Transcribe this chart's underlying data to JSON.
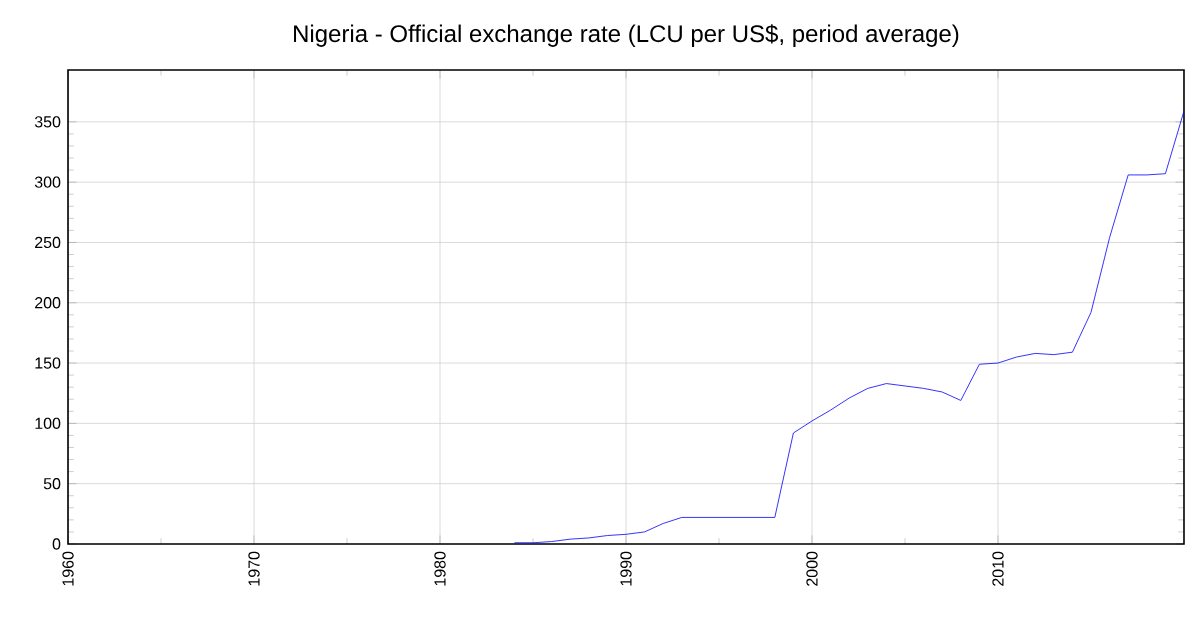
{
  "chart_data": {
    "type": "line",
    "title": "Nigeria - Official exchange rate (LCU per US$, period average)",
    "x": [
      1984,
      1985,
      1986,
      1987,
      1988,
      1989,
      1990,
      1991,
      1992,
      1993,
      1994,
      1995,
      1996,
      1997,
      1998,
      1999,
      2000,
      2001,
      2002,
      2003,
      2004,
      2005,
      2006,
      2007,
      2008,
      2009,
      2010,
      2011,
      2012,
      2013,
      2014,
      2015,
      2016,
      2017,
      2018,
      2019,
      2020
    ],
    "series": [
      {
        "color": "#0000ff",
        "values": [
          1,
          1,
          2,
          4,
          5,
          7,
          8,
          10,
          17,
          22,
          22,
          22,
          22,
          22,
          22,
          92,
          102,
          111,
          121,
          129,
          133,
          131,
          129,
          126,
          119,
          149,
          150,
          155,
          158,
          157,
          159,
          192,
          254,
          306,
          306,
          307,
          359
        ]
      }
    ],
    "xlim": [
      1960,
      2020
    ],
    "ylim": [
      0,
      393
    ],
    "xticks": [
      1960,
      1970,
      1980,
      1990,
      2000,
      2010
    ],
    "yticks": [
      0,
      50,
      100,
      150,
      200,
      250,
      300,
      350
    ],
    "grid": true,
    "marker": "none",
    "line_style": "solid"
  }
}
